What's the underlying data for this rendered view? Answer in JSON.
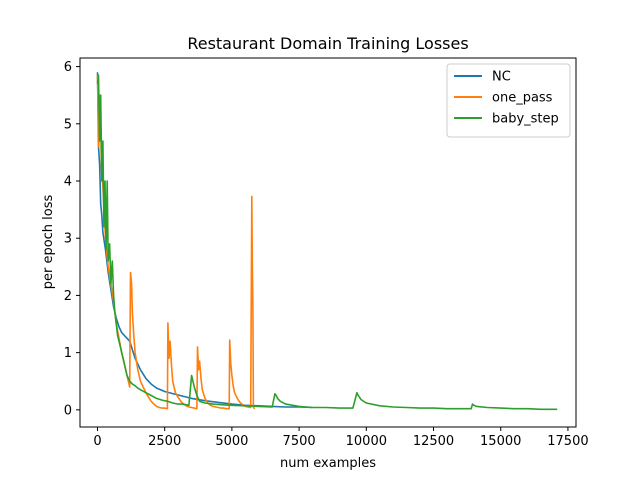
{
  "chart_data": {
    "type": "line",
    "title": "Restaurant Domain Training Losses",
    "xlabel": "num examples",
    "ylabel": "per epoch loss",
    "xlim": [
      -650,
      17800
    ],
    "ylim": [
      -0.3,
      6.15
    ],
    "xticks": [
      0,
      2500,
      5000,
      7500,
      10000,
      12500,
      15000,
      17500
    ],
    "xtick_labels": [
      "0",
      "2500",
      "5000",
      "7500",
      "10000",
      "12500",
      "15000",
      "17500"
    ],
    "yticks": [
      0,
      1,
      2,
      3,
      4,
      5,
      6
    ],
    "ytick_labels": [
      "0",
      "1",
      "2",
      "3",
      "4",
      "5",
      "6"
    ],
    "grid": false,
    "legend": "upper right",
    "series": [
      {
        "name": "NC",
        "color": "#1f77b4",
        "x": [
          0,
          40,
          80,
          120,
          160,
          200,
          300,
          400,
          500,
          600,
          700,
          800,
          900,
          1000,
          1100,
          1200,
          1300,
          1400,
          1600,
          1800,
          2000,
          2200,
          2500,
          3000,
          3500,
          4000,
          4500,
          5000,
          5500,
          6000,
          6500,
          7000,
          7500,
          8000
        ],
        "y": [
          5.9,
          4.6,
          4.3,
          3.6,
          3.4,
          3.1,
          2.8,
          2.4,
          2.1,
          1.8,
          1.6,
          1.45,
          1.35,
          1.3,
          1.25,
          1.2,
          1.05,
          0.9,
          0.7,
          0.55,
          0.45,
          0.38,
          0.32,
          0.26,
          0.2,
          0.16,
          0.13,
          0.1,
          0.08,
          0.07,
          0.06,
          0.05,
          0.05,
          0.04
        ]
      },
      {
        "name": "one_pass",
        "color": "#ff7f0e",
        "x": [
          0,
          50,
          100,
          150,
          200,
          300,
          400,
          500,
          600,
          700,
          800,
          900,
          1000,
          1100,
          1200,
          1230,
          1270,
          1300,
          1350,
          1400,
          1500,
          1600,
          1700,
          1800,
          1900,
          2000,
          2100,
          2200,
          2300,
          2400,
          2500,
          2600,
          2620,
          2660,
          2700,
          2750,
          2800,
          2900,
          3000,
          3100,
          3200,
          3300,
          3400,
          3500,
          3600,
          3700,
          3720,
          3760,
          3800,
          3850,
          3900,
          4000,
          4100,
          4200,
          4300,
          4400,
          4500,
          4600,
          4700,
          4800,
          4900,
          4920,
          4960,
          5000,
          5050,
          5100,
          5200,
          5300,
          5400,
          5500,
          5600,
          5700,
          5740,
          5760,
          5780,
          5800,
          5820,
          5850
        ],
        "y": [
          5.85,
          4.6,
          5.5,
          4.2,
          3.9,
          3.0,
          2.5,
          2.2,
          1.9,
          1.5,
          1.25,
          1.0,
          0.8,
          0.6,
          0.4,
          2.4,
          2.2,
          1.7,
          1.3,
          1.0,
          0.7,
          0.5,
          0.4,
          0.3,
          0.22,
          0.15,
          0.1,
          0.06,
          0.04,
          0.03,
          0.03,
          0.02,
          1.52,
          0.9,
          1.2,
          0.8,
          0.5,
          0.3,
          0.22,
          0.15,
          0.1,
          0.07,
          0.05,
          0.04,
          0.03,
          0.02,
          1.1,
          0.7,
          0.85,
          0.55,
          0.35,
          0.2,
          0.12,
          0.08,
          0.06,
          0.05,
          0.04,
          0.03,
          0.03,
          0.02,
          0.02,
          1.22,
          0.8,
          0.6,
          0.42,
          0.3,
          0.2,
          0.13,
          0.09,
          0.06,
          0.05,
          0.04,
          3.73,
          2.6,
          1.8,
          0.05,
          0.03,
          0.02
        ]
      },
      {
        "name": "baby_step",
        "color": "#2ca02c",
        "x": [
          0,
          40,
          80,
          120,
          160,
          200,
          240,
          280,
          320,
          360,
          400,
          450,
          500,
          550,
          600,
          650,
          700,
          750,
          800,
          900,
          1000,
          1100,
          1200,
          1300,
          1400,
          1500,
          1600,
          1800,
          2000,
          2200,
          2400,
          2600,
          2800,
          3000,
          3200,
          3400,
          3500,
          3600,
          3700,
          3800,
          4000,
          4300,
          4600,
          5000,
          5500,
          6000,
          6500,
          6600,
          6650,
          6700,
          6800,
          7000,
          7500,
          8000,
          8500,
          9000,
          9500,
          9650,
          9700,
          9750,
          9800,
          10000,
          10500,
          11000,
          11500,
          12000,
          12500,
          13000,
          13500,
          13900,
          13950,
          14000,
          14100,
          14500,
          15000,
          15500,
          16000,
          16500,
          17000,
          17100
        ],
        "y": [
          5.7,
          5.85,
          4.7,
          5.5,
          4.0,
          4.7,
          3.2,
          4.0,
          2.8,
          4.0,
          2.6,
          2.9,
          2.2,
          2.6,
          2.0,
          1.7,
          1.5,
          1.3,
          1.2,
          1.0,
          0.8,
          0.6,
          0.5,
          0.45,
          0.42,
          0.38,
          0.35,
          0.3,
          0.25,
          0.2,
          0.17,
          0.15,
          0.12,
          0.1,
          0.1,
          0.08,
          0.6,
          0.4,
          0.25,
          0.15,
          0.12,
          0.1,
          0.09,
          0.08,
          0.07,
          0.06,
          0.05,
          0.28,
          0.25,
          0.2,
          0.15,
          0.1,
          0.06,
          0.04,
          0.04,
          0.03,
          0.03,
          0.3,
          0.25,
          0.22,
          0.18,
          0.12,
          0.07,
          0.05,
          0.04,
          0.03,
          0.03,
          0.02,
          0.02,
          0.02,
          0.1,
          0.08,
          0.06,
          0.04,
          0.03,
          0.02,
          0.02,
          0.01,
          0.01,
          0.01
        ]
      }
    ]
  }
}
